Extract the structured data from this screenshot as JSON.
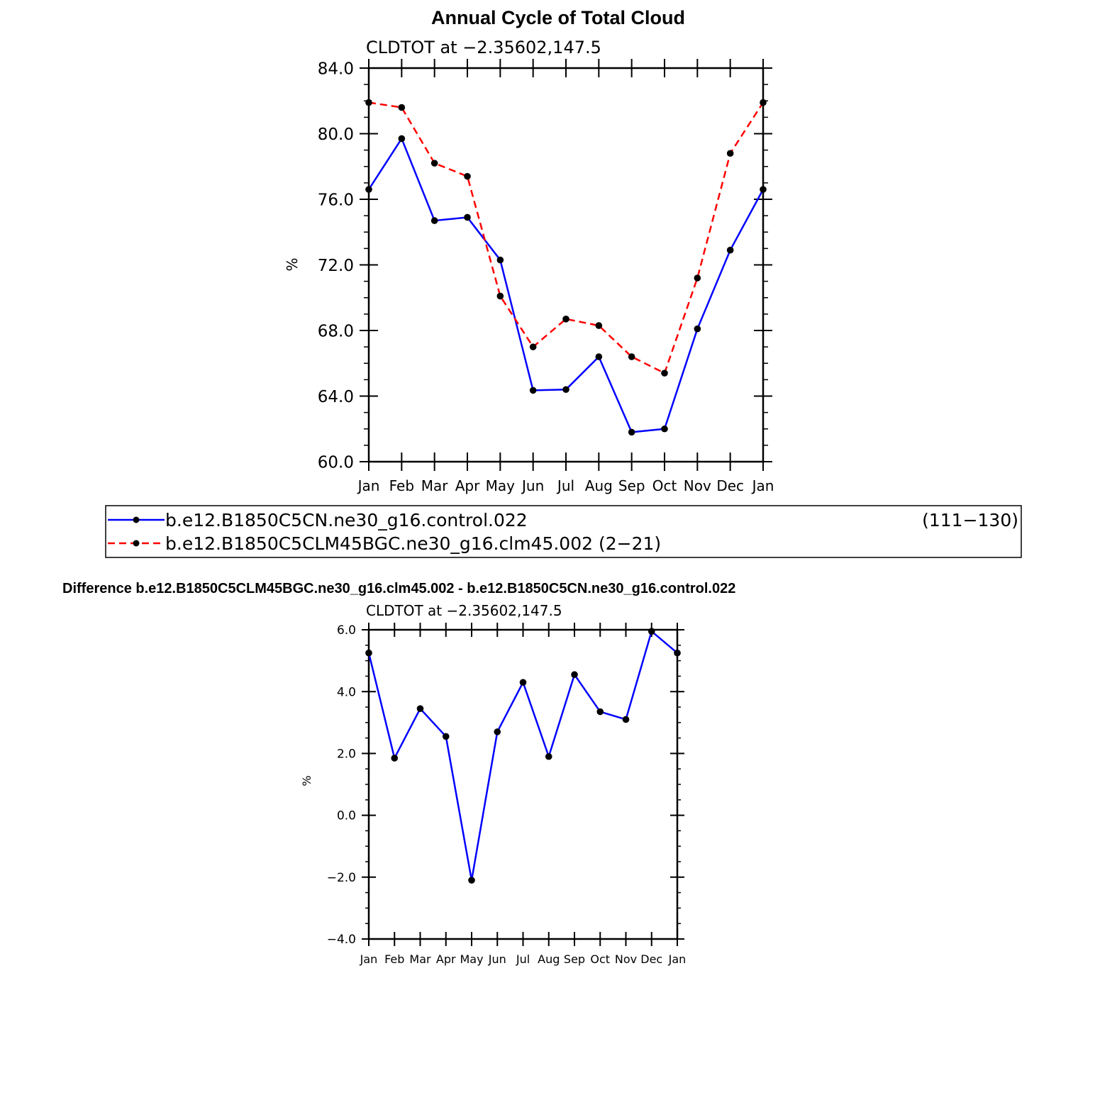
{
  "page": {
    "title": "Annual Cycle of Total Cloud"
  },
  "legend": {
    "entries": [
      {
        "label": "b.e12.B1850C5CN.ne30_g16.control.022",
        "suffix": "(111−130)",
        "color": "#0000ff",
        "dash": "solid"
      },
      {
        "label": "b.e12.B1850C5CLM45BGC.ne30_g16.clm45.002 (2−21)",
        "suffix": "",
        "color": "#ff0000",
        "dash": "dashed"
      }
    ]
  },
  "diff_title": "Difference b.e12.B1850C5CLM45BGC.ne30_g16.clm45.002 - b.e12.B1850C5CN.ne30_g16.control.022",
  "chart_data": [
    {
      "type": "line",
      "title": "Annual Cycle of Total Cloud",
      "subtitle": "CLDTOT at −2.35602,147.5",
      "xlabel": "",
      "ylabel": "%",
      "categories": [
        "Jan",
        "Feb",
        "Mar",
        "Apr",
        "May",
        "Jun",
        "Jul",
        "Aug",
        "Sep",
        "Oct",
        "Nov",
        "Dec",
        "Jan"
      ],
      "ylim": [
        60,
        84
      ],
      "yticks": [
        60,
        64,
        68,
        72,
        76,
        80,
        84
      ],
      "ytick_labels": [
        "60.0",
        "64.0",
        "68.0",
        "72.0",
        "76.0",
        "80.0",
        "84.0"
      ],
      "yminor_step": 1,
      "grid": false,
      "series": [
        {
          "name": "b.e12.B1850C5CN.ne30_g16.control.022 (111−130)",
          "color": "#0000ff",
          "dash": "solid",
          "values": [
            76.6,
            79.7,
            74.7,
            74.9,
            72.3,
            64.35,
            64.4,
            66.4,
            61.8,
            62.0,
            68.1,
            72.9,
            76.6
          ]
        },
        {
          "name": "b.e12.B1850C5CLM45BGC.ne30_g16.clm45.002 (2−21)",
          "color": "#ff0000",
          "dash": "dashed",
          "values": [
            81.9,
            81.6,
            78.2,
            77.4,
            70.1,
            67.0,
            68.7,
            68.3,
            66.4,
            65.4,
            71.2,
            78.8,
            81.9
          ]
        }
      ]
    },
    {
      "type": "line",
      "title": "Difference b.e12.B1850C5CLM45BGC.ne30_g16.clm45.002 - b.e12.B1850C5CN.ne30_g16.control.022",
      "subtitle": "CLDTOT at −2.35602,147.5",
      "xlabel": "",
      "ylabel": "%",
      "categories": [
        "Jan",
        "Feb",
        "Mar",
        "Apr",
        "May",
        "Jun",
        "Jul",
        "Aug",
        "Sep",
        "Oct",
        "Nov",
        "Dec",
        "Jan"
      ],
      "ylim": [
        -4,
        6
      ],
      "yticks": [
        -4,
        -2,
        0,
        2,
        4,
        6
      ],
      "ytick_labels": [
        "−4.0",
        "−2.0",
        "0.0",
        "2.0",
        "4.0",
        "6.0"
      ],
      "yminor_step": 0.5,
      "grid": false,
      "series": [
        {
          "name": "difference",
          "color": "#0000ff",
          "dash": "solid",
          "values": [
            5.25,
            1.85,
            3.45,
            2.55,
            -2.1,
            2.7,
            4.3,
            1.9,
            4.55,
            3.35,
            3.1,
            5.95,
            5.25
          ]
        }
      ]
    }
  ]
}
